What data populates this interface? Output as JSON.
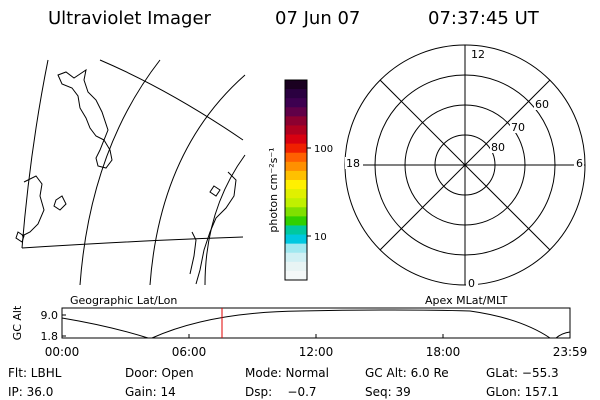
{
  "header": {
    "title": "Ultraviolet Imager",
    "date": "07 Jun 07",
    "time": "07:37:45 UT"
  },
  "colorbar": {
    "unit_label": "photon cm⁻²s⁻¹",
    "ticks": [
      "100",
      "10"
    ],
    "colors": [
      "#1a0020",
      "#2a0040",
      "#3d0050",
      "#600048",
      "#8c0030",
      "#b0001f",
      "#d80010",
      "#f02000",
      "#ff6000",
      "#ff9000",
      "#ffc000",
      "#fff000",
      "#e0f000",
      "#c0f000",
      "#80e000",
      "#30d000",
      "#00c8a0",
      "#00c8e0",
      "#a0e8f0",
      "#d0f0f4",
      "#e8f4f4",
      "#f4f8f8"
    ]
  },
  "polar": {
    "top_label": "12",
    "bottom_label": "0",
    "left_label": "18",
    "right_label": "6",
    "lat_labels": [
      "60",
      "70",
      "80"
    ]
  },
  "map_labels": {
    "left": "Geographic Lat/Lon",
    "right": "Apex MLat/MLT"
  },
  "altitude_plot": {
    "axis_label": "GC Alt",
    "y_ticks": [
      "9.0",
      "1.8"
    ],
    "x_ticks": [
      "00:00",
      "06:00",
      "12:00",
      "18:00",
      "23:59"
    ],
    "marker_color": "#e00000"
  },
  "footer": {
    "row1": {
      "flt": "Flt: LBHL",
      "door": "Door: Open",
      "mode": "Mode: Normal",
      "gcalt": "GC Alt: 6.0 Re",
      "glat": "GLat: −55.3"
    },
    "row2": {
      "ip": "IP: 36.0",
      "gain": "Gain: 14",
      "dsp": "Dsp:    −0.7",
      "seq": "Seq: 39",
      "glon": "GLon: 157.1"
    }
  }
}
